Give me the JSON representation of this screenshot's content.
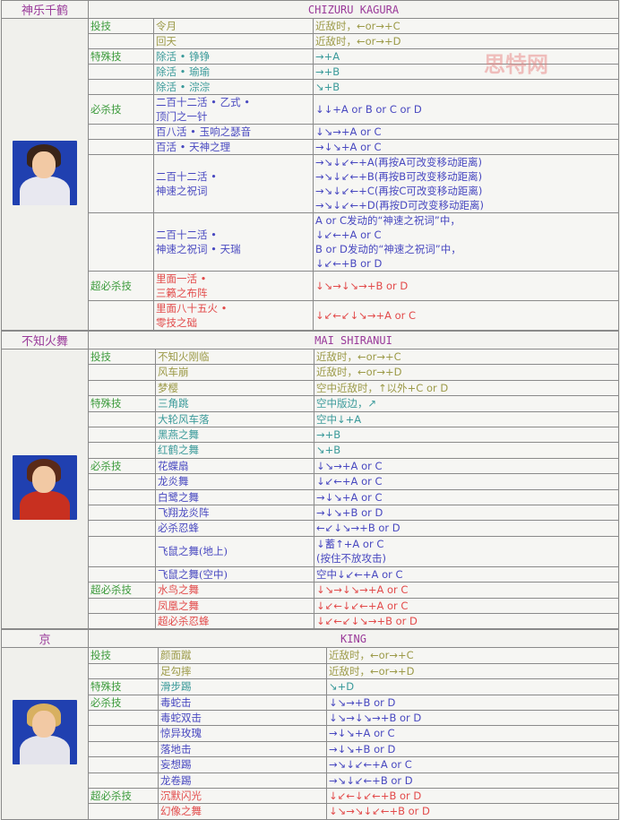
{
  "watermark": "思特网",
  "colors": {
    "category": "#3a9a3a",
    "throw": "#9c9a48",
    "special": "#3a9a9a",
    "desperation": "#4848c0",
    "super": "#e24a4a",
    "arrow": "#e02020",
    "header": "#9a3a9a"
  },
  "sections": [
    {
      "name_cn": "神乐千鹤",
      "name_en": "CHIZURU KAGURA",
      "portrait": {
        "bg": "#2040b0",
        "hair": "#3a2418",
        "body": "#e8e8f0"
      },
      "rows": [
        {
          "category": "投技",
          "move": "令月",
          "input": "近敌时，←or→+C",
          "type": "throw"
        },
        {
          "category": "",
          "move": "回天",
          "input": "近敌时，←or→+D",
          "type": "throw"
        },
        {
          "category": "特殊技",
          "move": "除活 • 铮铮",
          "input": "→+A",
          "type": "special"
        },
        {
          "category": "",
          "move": "除活 • 瑜瑜",
          "input": "→+B",
          "type": "special"
        },
        {
          "category": "",
          "move": "除活 • 淙淙",
          "input": "↘+B",
          "type": "special"
        },
        {
          "category": "必杀技",
          "move": "二百十二活 • 乙式 •\n顶门之一针",
          "input": "↓↓+A or B or C or D",
          "type": "desp"
        },
        {
          "category": "",
          "move": "百八活 • 玉响之瑟音",
          "input": "↓↘→+A or C",
          "type": "desp"
        },
        {
          "category": "",
          "move": "百活 • 天神之理",
          "input": "→↓↘+A or C",
          "type": "desp"
        },
        {
          "category": "",
          "move": "二百十二活 •\n神速之祝词",
          "input": "→↘↓↙←+A(再按A可改变移动距离)\n→↘↓↙←+B(再按B可改变移动距离)\n→↘↓↙←+C(再按C可改变移动距离)\n→↘↓↙←+D(再按D可改变移动距离)",
          "type": "desp",
          "lines": 4
        },
        {
          "category": "",
          "move": "二百十二活 •\n神速之祝词 • 天瑞",
          "input": "A or C发动的“神速之祝词”中，\n↓↙←+A or C\nB or D发动的“神速之祝词”中，\n↓↙←+B or D",
          "type": "desp",
          "lines": 4
        },
        {
          "category": "超必杀技",
          "move": "里面一活 •\n三籁之布阵",
          "input": "↓↘→↓↘→+B or D",
          "type": "super",
          "lines": 2
        },
        {
          "category": "",
          "move": "里面八十五火 •\n零技之础",
          "input": "↓↙←↙↓↘→+A or C",
          "type": "super",
          "lines": 2
        }
      ]
    },
    {
      "name_cn": "不知火舞",
      "name_en": "MAI SHIRANUI",
      "portrait": {
        "bg": "#2040b0",
        "hair": "#5a2a18",
        "body": "#c83020"
      },
      "rows": [
        {
          "category": "投技",
          "move": "不知火刚临",
          "input": "近敌时，←or→+C",
          "type": "throw"
        },
        {
          "category": "",
          "move": "风车崩",
          "input": "近敌时，←or→+D",
          "type": "throw"
        },
        {
          "category": "",
          "move": "梦樱",
          "input": "空中近敌时，↑以外+C or D",
          "type": "throw"
        },
        {
          "category": "特殊技",
          "move": "三角跳",
          "input": "空中版边，↗",
          "type": "special"
        },
        {
          "category": "",
          "move": "大轮风车落",
          "input": "空中↓+A",
          "type": "special"
        },
        {
          "category": "",
          "move": "黑燕之舞",
          "input": "→+B",
          "type": "special"
        },
        {
          "category": "",
          "move": "红鹤之舞",
          "input": "↘+B",
          "type": "special"
        },
        {
          "category": "必杀技",
          "move": "花蝶扇",
          "input": "↓↘→+A or C",
          "type": "desp"
        },
        {
          "category": "",
          "move": "龙炎舞",
          "input": "↓↙←+A or C",
          "type": "desp"
        },
        {
          "category": "",
          "move": "白鹭之舞",
          "input": "→↓↘+A or C",
          "type": "desp"
        },
        {
          "category": "",
          "move": "飞翔龙炎阵",
          "input": "→↓↘+B or D",
          "type": "desp"
        },
        {
          "category": "",
          "move": "必杀忍蜂",
          "input": "←↙↓↘→+B or D",
          "type": "desp"
        },
        {
          "category": "",
          "move": "飞鼠之舞(地上)",
          "input": "↓蓄↑+A or C\n(按住不放攻击)",
          "type": "desp",
          "lines": 2
        },
        {
          "category": "",
          "move": "飞鼠之舞(空中)",
          "input": "空中↓↙←+A or C",
          "type": "desp"
        },
        {
          "category": "超必杀技",
          "move": "水鸟之舞",
          "input": "↓↘→↓↘→+A or C",
          "type": "super"
        },
        {
          "category": "",
          "move": "凤凰之舞",
          "input": "↓↙←↓↙←+A or C",
          "type": "super"
        },
        {
          "category": "",
          "move": "超必杀忍蜂",
          "input": "↓↙←↙↓↘→+B or D",
          "type": "super"
        }
      ]
    },
    {
      "name_cn": "京",
      "name_en": "KING",
      "portrait": {
        "bg": "#2040b0",
        "hair": "#d8b060",
        "body": "#e4e4ec"
      },
      "rows": [
        {
          "category": "投技",
          "move": "颜面蹴",
          "input": "近敌时，←or→+C",
          "type": "throw"
        },
        {
          "category": "",
          "move": "足勾摔",
          "input": "近敌时，←or→+D",
          "type": "throw"
        },
        {
          "category": "特殊技",
          "move": "滑步踢",
          "input": "↘+D",
          "type": "special"
        },
        {
          "category": "必杀技",
          "move": "毒蛇击",
          "input": "↓↘→+B or D",
          "type": "desp"
        },
        {
          "category": "",
          "move": "毒蛇双击",
          "input": "↓↘→↓↘→+B or D",
          "type": "desp"
        },
        {
          "category": "",
          "move": "惊异玫瑰",
          "input": "→↓↘+A or C",
          "type": "desp"
        },
        {
          "category": "",
          "move": "落地击",
          "input": "→↓↘+B or D",
          "type": "desp"
        },
        {
          "category": "",
          "move": "妄想踢",
          "input": "→↘↓↙←+A or C",
          "type": "desp"
        },
        {
          "category": "",
          "move": "龙卷踢",
          "input": "→↘↓↙←+B or D",
          "type": "desp"
        },
        {
          "category": "超必杀技",
          "move": "沉默闪光",
          "input": "↓↙←↓↙←+B or D",
          "type": "super"
        },
        {
          "category": "",
          "move": "幻像之舞",
          "input": "↓↘→↘↓↙←+B or D",
          "type": "super"
        }
      ]
    }
  ]
}
